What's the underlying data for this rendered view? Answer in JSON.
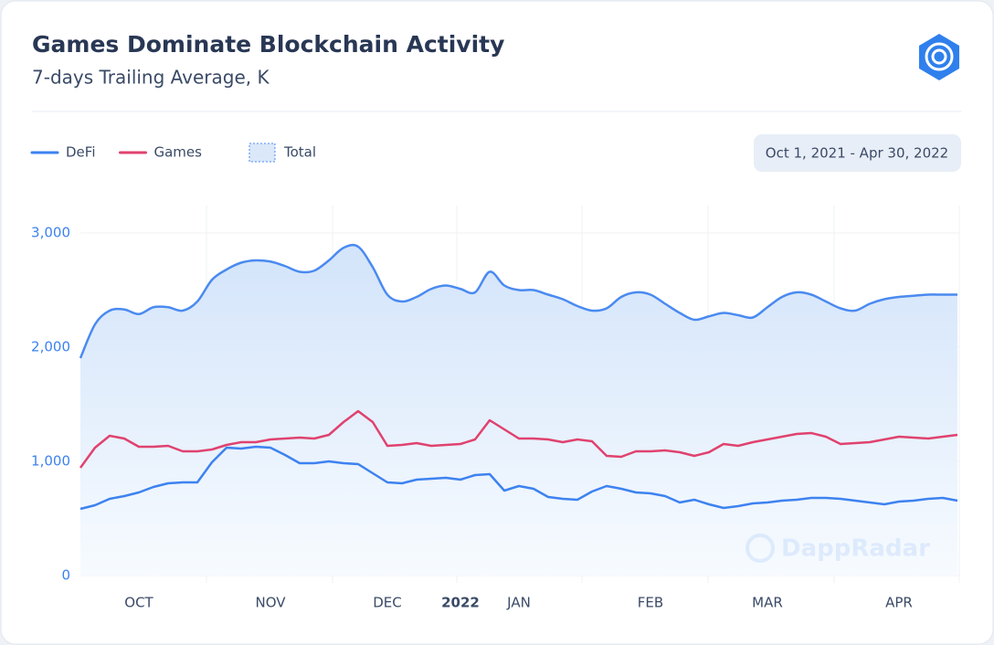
{
  "chart_data": {
    "type": "line",
    "title": "Games Dominate Blockchain Activity",
    "subtitle": "7-days Trailing Average, K",
    "date_range": "Oct 1, 2021 - Apr 30, 2022",
    "watermark": "DappRadar",
    "categories": [
      null,
      null,
      null,
      null,
      "OCT",
      null,
      null,
      null,
      null,
      null,
      null,
      null,
      null,
      "NOV",
      null,
      null,
      null,
      null,
      null,
      null,
      null,
      "DEC",
      null,
      null,
      null,
      null,
      "2022",
      null,
      null,
      null,
      "JAN",
      null,
      null,
      null,
      null,
      null,
      null,
      null,
      null,
      "FEB",
      null,
      null,
      null,
      null,
      null,
      null,
      null,
      "MAR",
      null,
      null,
      null,
      null,
      null,
      null,
      null,
      null,
      "APR",
      null,
      null,
      null,
      null
    ],
    "series": [
      {
        "name": "DeFi",
        "color": "#3d82f0",
        "style": "line",
        "values": [
          584,
          616,
          672,
          696,
          728,
          776,
          808,
          816,
          816,
          992,
          1120,
          1112,
          1128,
          1120,
          1056,
          984,
          984,
          1000,
          984,
          976,
          896,
          816,
          808,
          840,
          848,
          856,
          840,
          880,
          888,
          744,
          784,
          760,
          688,
          672,
          664,
          736,
          784,
          760,
          728,
          720,
          696,
          640,
          664,
          624,
          592,
          608,
          632,
          640,
          656,
          664,
          680,
          680,
          672,
          656,
          640,
          624,
          648,
          656,
          672,
          680,
          656
        ]
      },
      {
        "name": "Games",
        "color": "#e0426f",
        "style": "line",
        "values": [
          944,
          1120,
          1224,
          1200,
          1128,
          1128,
          1136,
          1088,
          1088,
          1104,
          1144,
          1168,
          1168,
          1192,
          1200,
          1208,
          1200,
          1232,
          1344,
          1440,
          1344,
          1136,
          1144,
          1160,
          1136,
          1144,
          1152,
          1192,
          1360,
          1280,
          1200,
          1200,
          1192,
          1168,
          1192,
          1176,
          1048,
          1040,
          1088,
          1088,
          1096,
          1080,
          1048,
          1080,
          1152,
          1136,
          1168,
          1192,
          1216,
          1240,
          1248,
          1216,
          1152,
          1160,
          1168,
          1192,
          1216,
          1208,
          1200,
          1216,
          1232
        ]
      },
      {
        "name": "Total",
        "color": "#4a8af0",
        "style": "area",
        "values": [
          1904,
          2200,
          2320,
          2330,
          2290,
          2350,
          2350,
          2320,
          2400,
          2590,
          2680,
          2740,
          2760,
          2750,
          2710,
          2660,
          2670,
          2760,
          2870,
          2880,
          2700,
          2460,
          2400,
          2440,
          2510,
          2540,
          2510,
          2480,
          2660,
          2540,
          2500,
          2500,
          2460,
          2420,
          2360,
          2320,
          2340,
          2440,
          2480,
          2460,
          2380,
          2300,
          2240,
          2270,
          2300,
          2280,
          2260,
          2350,
          2440,
          2480,
          2460,
          2400,
          2340,
          2320,
          2380,
          2420,
          2440,
          2450,
          2460,
          2460,
          2460
        ]
      }
    ],
    "ylim": [
      0,
      3200
    ],
    "yticks": [
      0,
      {
        "value": 1000,
        "label": "1,000"
      },
      {
        "value": 2000,
        "label": "2,000"
      },
      {
        "value": 3000,
        "label": "3,000"
      }
    ],
    "grid": true
  }
}
